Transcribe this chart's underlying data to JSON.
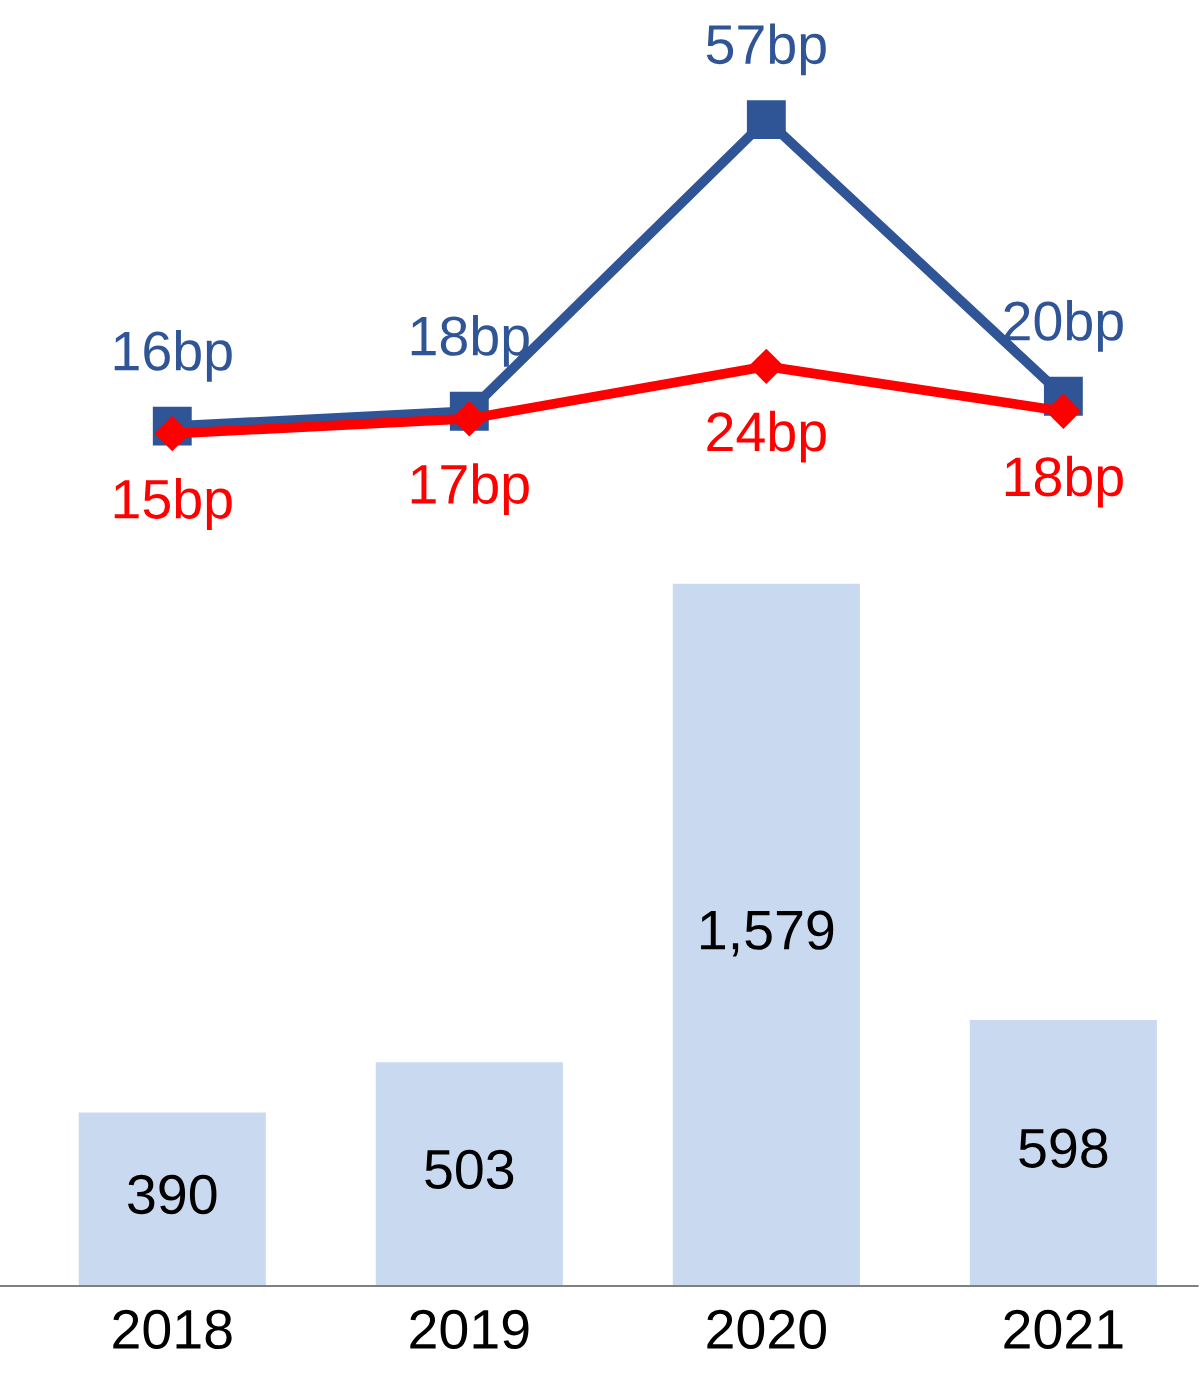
{
  "chart_data": {
    "type": "bar",
    "categories": [
      "2018",
      "2019",
      "2020",
      "2021"
    ],
    "ylim": [
      0,
      2892
    ],
    "y2lim": [
      -99,
      73
    ],
    "tick_labels": "x",
    "grid": false,
    "legend": false,
    "series": [
      {
        "color": "#c9daf0",
        "values": [
          390,
          503,
          1579,
          598
        ],
        "value_labels": [
          "390",
          "503",
          "1,579",
          "598"
        ]
      },
      {
        "type": "line",
        "axis": "y2",
        "color": "#2f5597",
        "marker": "square",
        "values": [
          16,
          18,
          57,
          20
        ],
        "value_labels": [
          "16bp",
          "18bp",
          "57bp",
          "20bp"
        ]
      },
      {
        "type": "line",
        "axis": "y2",
        "color": "#ff0000",
        "marker": "diamond",
        "values": [
          15,
          17,
          24,
          18
        ],
        "value_labels": [
          "15bp",
          "17bp",
          "24bp",
          "18bp"
        ]
      }
    ]
  }
}
